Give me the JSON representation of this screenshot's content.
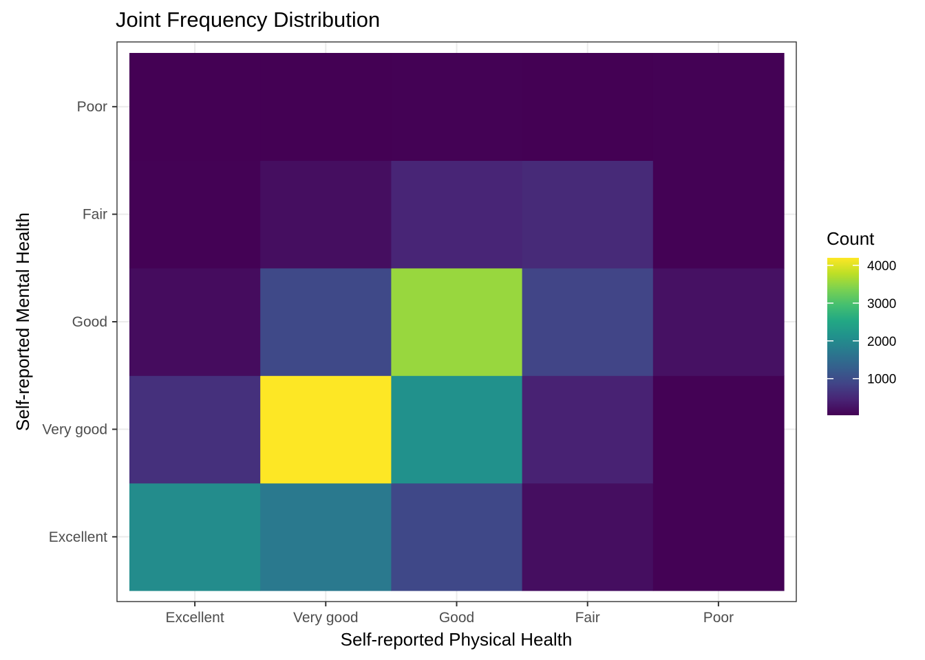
{
  "chart_data": {
    "type": "heatmap",
    "title": "Joint Frequency Distribution",
    "xlabel": "Self-reported Physical Health",
    "ylabel": "Self-reported Mental Health",
    "x_categories": [
      "Excellent",
      "Very good",
      "Good",
      "Fair",
      "Poor"
    ],
    "y_categories": [
      "Excellent",
      "Very good",
      "Good",
      "Fair",
      "Poor"
    ],
    "z": [
      [
        2030,
        1720,
        920,
        180,
        40
      ],
      [
        600,
        4200,
        2120,
        420,
        40
      ],
      [
        160,
        940,
        3550,
        880,
        220
      ],
      [
        40,
        180,
        460,
        520,
        40
      ],
      [
        30,
        30,
        40,
        30,
        40
      ]
    ],
    "legend": {
      "title": "Count",
      "ticks": [
        1000,
        2000,
        3000,
        4000
      ],
      "min": 30,
      "max": 4200,
      "colors": [
        "#440154",
        "#482475",
        "#414487",
        "#355f8d",
        "#2a788e",
        "#21918c",
        "#22a884",
        "#44bf70",
        "#7ad151",
        "#bddf26",
        "#fde725"
      ],
      "placement": "right"
    },
    "grid": true,
    "colors": {
      "panel_border": "#333333",
      "grid": "#ebebeb",
      "background": "#ffffff"
    }
  }
}
